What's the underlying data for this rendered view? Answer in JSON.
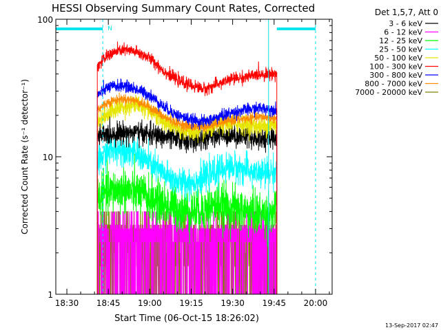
{
  "chart_data": {
    "type": "line",
    "title": "HESSI Observing Summary Count Rates, Corrected",
    "xlabel": "Start Time (06-Oct-15 18:26:02)",
    "ylabel": "Corrected Count Rate (s⁻¹ detector⁻¹)",
    "y_scale": "log",
    "ylim": [
      1,
      100
    ],
    "xlim": [
      "18:26",
      "20:06"
    ],
    "x_ticks": [
      "18:30",
      "18:45",
      "19:00",
      "19:15",
      "19:30",
      "19:45",
      "20:00"
    ],
    "y_ticks": [
      "1",
      "10",
      "100"
    ],
    "date_stamp": "13-Sep-2017 02:47",
    "grid": false,
    "legend": {
      "position": "top-right",
      "title": "Det 1,5,7, Att 0",
      "entries": [
        {
          "label": "3 - 6 keV",
          "color": "#000000"
        },
        {
          "label": "6 - 12 keV",
          "color": "#ff00ff"
        },
        {
          "label": "12 - 25 keV",
          "color": "#00ff00"
        },
        {
          "label": "25 - 50 keV",
          "color": "#00ffff"
        },
        {
          "label": "50 - 100 keV",
          "color": "#e6e600"
        },
        {
          "label": "100 - 300 keV",
          "color": "#ff0000"
        },
        {
          "label": "300 - 800 keV",
          "color": "#0000ff"
        },
        {
          "label": "800 - 7000 keV",
          "color": "#ff8c00"
        },
        {
          "label": "7000 - 20000 keV",
          "color": "#808000"
        }
      ]
    },
    "annotations": {
      "flag_label": "N",
      "flag_bar_color": "#00e5ee",
      "flag_intervals": [
        [
          "18:26",
          "18:43"
        ],
        [
          "19:46",
          "20:00"
        ]
      ],
      "markers_solid": [
        "18:26",
        "19:43"
      ],
      "markers_dashed": [
        "18:43",
        "20:00"
      ]
    },
    "data_window": [
      "18:41",
      "19:46"
    ],
    "series": [
      {
        "name": "3 - 6 keV",
        "color": "#000000",
        "noise": 0.09,
        "x": [
          "18:41",
          "18:45",
          "18:50",
          "18:55",
          "19:00",
          "19:05",
          "19:10",
          "19:15",
          "19:20",
          "19:25",
          "19:30",
          "19:35",
          "19:40",
          "19:46"
        ],
        "y": [
          14,
          14.5,
          15,
          15,
          14.5,
          14,
          13.5,
          13,
          13.5,
          14.5,
          14.5,
          14,
          13.5,
          14
        ]
      },
      {
        "name": "6 - 12 keV",
        "color": "#ff00ff",
        "noise": 0.12,
        "x": [
          "18:41",
          "18:50",
          "19:00",
          "19:10",
          "19:20",
          "19:30",
          "19:40",
          "19:46"
        ],
        "y": [
          2.5,
          2.6,
          2.6,
          2.5,
          2.4,
          2.4,
          2.5,
          2.5
        ]
      },
      {
        "name": "12 - 25 keV",
        "color": "#00ff00",
        "noise": 0.18,
        "x": [
          "18:41",
          "18:45",
          "18:50",
          "18:55",
          "19:00",
          "19:05",
          "19:10",
          "19:15",
          "19:20",
          "19:25",
          "19:30",
          "19:35",
          "19:40",
          "19:46"
        ],
        "y": [
          5,
          5.5,
          5.8,
          5.5,
          5,
          4.5,
          4.2,
          4,
          4.2,
          4.5,
          4.2,
          4,
          3.8,
          4
        ]
      },
      {
        "name": "25 - 50 keV",
        "color": "#00ffff",
        "noise": 0.12,
        "x": [
          "18:41",
          "18:45",
          "18:50",
          "18:55",
          "19:00",
          "19:05",
          "19:10",
          "19:15",
          "19:20",
          "19:25",
          "19:30",
          "19:35",
          "19:40",
          "19:46"
        ],
        "y": [
          9,
          11,
          11.5,
          10.5,
          9,
          7.5,
          6.5,
          6.5,
          7,
          8,
          8.5,
          8,
          7.5,
          8
        ]
      },
      {
        "name": "50 - 100 keV",
        "color": "#e6e600",
        "noise": 0.08,
        "x": [
          "18:41",
          "18:45",
          "18:50",
          "18:55",
          "19:00",
          "19:05",
          "19:10",
          "19:15",
          "19:20",
          "19:25",
          "19:30",
          "19:35",
          "19:40",
          "19:46"
        ],
        "y": [
          18,
          21,
          23,
          24,
          22,
          18,
          16,
          15,
          15.5,
          17,
          17.5,
          17,
          16.5,
          17
        ]
      },
      {
        "name": "100 - 300 keV",
        "color": "#ff0000",
        "noise": 0.05,
        "x": [
          "18:41",
          "18:45",
          "18:50",
          "18:55",
          "19:00",
          "19:05",
          "19:10",
          "19:15",
          "19:20",
          "19:25",
          "19:30",
          "19:35",
          "19:40",
          "19:46"
        ],
        "y": [
          45,
          55,
          60,
          58,
          52,
          42,
          36,
          33,
          31,
          34,
          37,
          38,
          40,
          40
        ]
      },
      {
        "name": "300 - 800 keV",
        "color": "#0000ff",
        "noise": 0.05,
        "x": [
          "18:41",
          "18:45",
          "18:50",
          "18:55",
          "19:00",
          "19:05",
          "19:10",
          "19:15",
          "19:20",
          "19:25",
          "19:30",
          "19:35",
          "19:40",
          "19:46"
        ],
        "y": [
          28,
          32,
          33,
          31,
          28,
          23,
          20,
          18.5,
          18,
          19.5,
          21,
          22,
          22.5,
          22
        ]
      },
      {
        "name": "800 - 7000 keV",
        "color": "#ff8c00",
        "noise": 0.04,
        "x": [
          "18:41",
          "18:45",
          "18:50",
          "18:55",
          "19:00",
          "19:05",
          "19:10",
          "19:15",
          "19:20",
          "19:25",
          "19:30",
          "19:35",
          "19:40",
          "19:46"
        ],
        "y": [
          22,
          25,
          26.5,
          25.5,
          23,
          19.5,
          17.5,
          16.5,
          16.5,
          17.5,
          18.5,
          19,
          19.5,
          19
        ]
      },
      {
        "name": "7000 - 20000 keV",
        "color": "#808000",
        "noise": 0.3,
        "x": [
          "18:41",
          "18:50",
          "19:00",
          "19:10",
          "19:20",
          "19:30",
          "19:40",
          "19:46"
        ],
        "y": [
          2.2,
          2.4,
          2.3,
          2.2,
          2.1,
          2.2,
          2.2,
          2.2
        ]
      }
    ]
  }
}
